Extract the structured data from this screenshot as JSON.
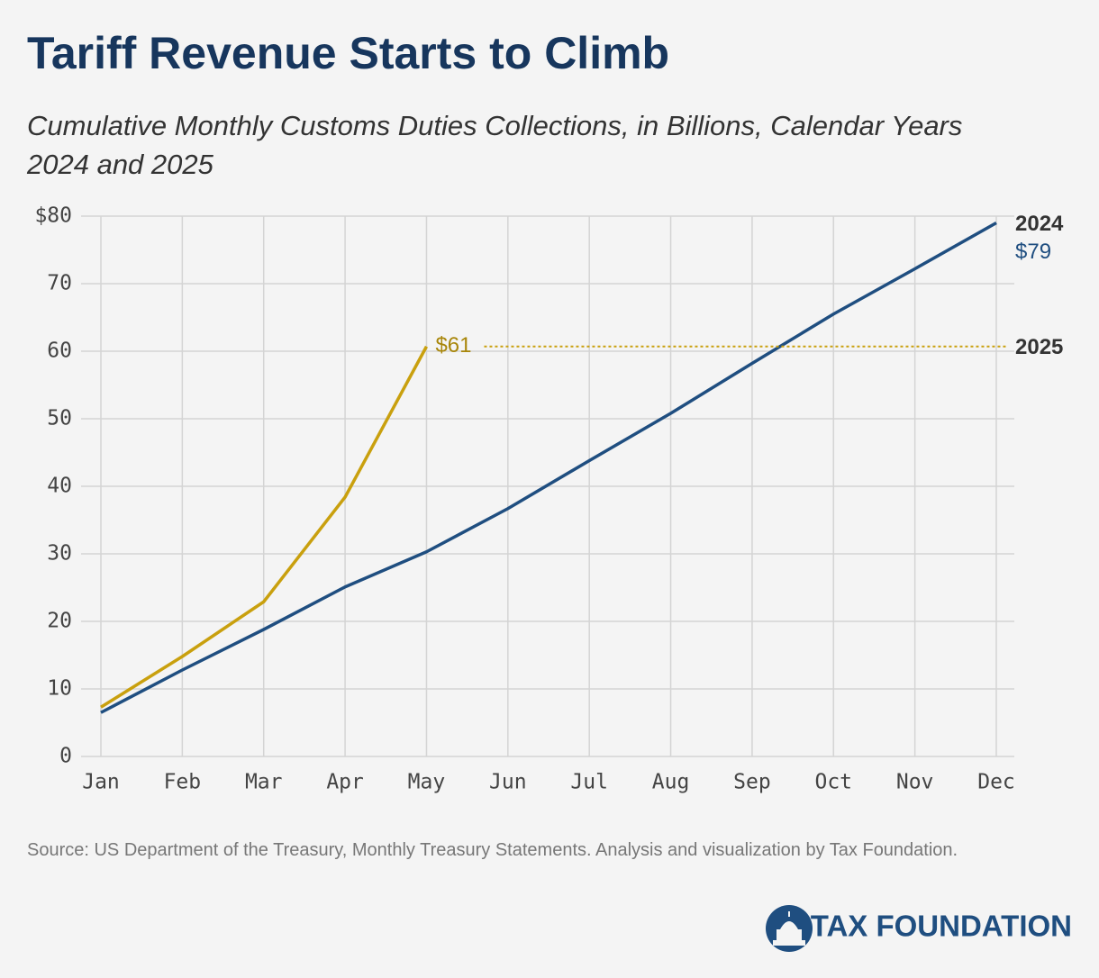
{
  "chart_data": {
    "type": "line",
    "title": "Tariff Revenue Starts to Climb",
    "subtitle": "Cumulative Monthly Customs Duties Collections, in Billions, Calendar Years 2024 and 2025",
    "categories": [
      "Jan",
      "Feb",
      "Mar",
      "Apr",
      "May",
      "Jun",
      "Jul",
      "Aug",
      "Sep",
      "Oct",
      "Nov",
      "Dec"
    ],
    "series": [
      {
        "name": "2024",
        "color": "#1f4e80",
        "values": [
          6.5,
          12.8,
          18.8,
          25.1,
          30.3,
          36.7,
          43.8,
          50.8,
          58.2,
          65.5,
          72.2,
          79
        ],
        "value_labels": [
          null,
          null,
          null,
          null,
          null,
          null,
          null,
          null,
          null,
          null,
          null,
          "$79"
        ]
      },
      {
        "name": "2025",
        "color": "#c9a00e",
        "values": [
          7.3,
          14.8,
          22.9,
          38.4,
          60.7,
          null,
          null,
          null,
          null,
          null,
          null,
          null
        ],
        "value_labels": [
          null,
          null,
          null,
          null,
          "$61",
          null,
          null,
          null,
          null,
          null,
          null,
          null
        ]
      }
    ],
    "ylim": [
      0,
      80
    ],
    "yticks": [
      0,
      10,
      20,
      30,
      40,
      50,
      60,
      70,
      {
        "value": 80,
        "label": "$80"
      }
    ],
    "grid": true,
    "source": "Source: US Department of the Treasury, Monthly Treasury Statements. Analysis and visualization by Tax Foundation.",
    "logo": "TAX FOUNDATION"
  }
}
